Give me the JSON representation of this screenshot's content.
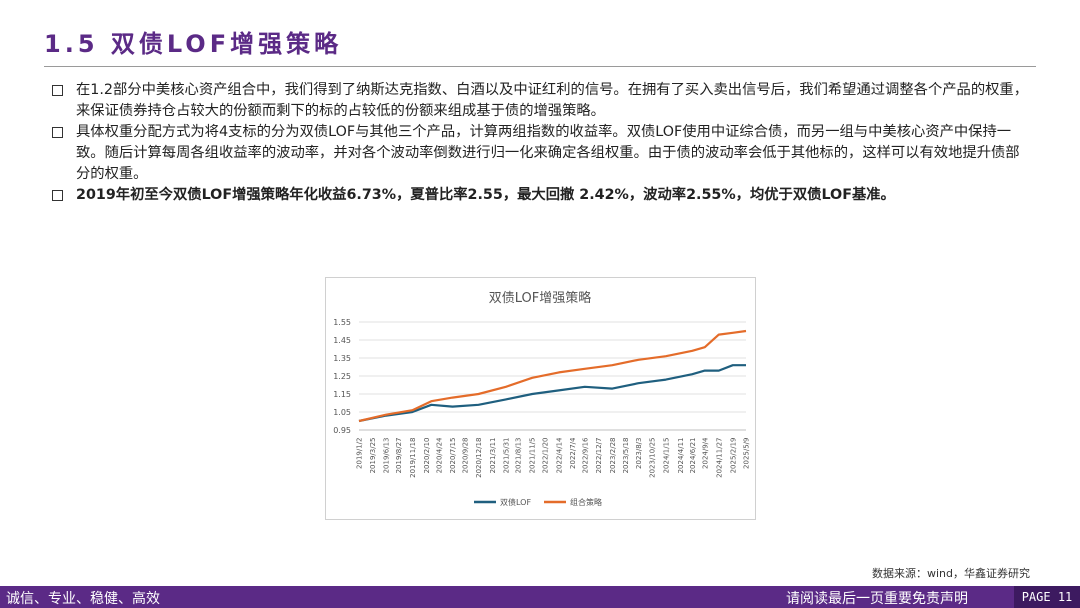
{
  "page": {
    "title": "1.5 双债LOF增强策略",
    "bullets": [
      {
        "text": "在1.2部分中美核心资产组合中，我们得到了纳斯达克指数、白酒以及中证红利的信号。在拥有了买入卖出信号后，我们希望通过调整各个产品的权重，来保证债券持仓占较大的份额而剩下的标的占较低的份额来组成基于债的增强策略。",
        "bold": false
      },
      {
        "text": "具体权重分配方式为将4支标的分为双债LOF与其他三个产品，计算两组指数的收益率。双债LOF使用中证综合债，而另一组与中美核心资产中保持一致。随后计算每周各组收益率的波动率，并对各个波动率倒数进行归一化来确定各组权重。由于债的波动率会低于其他标的，这样可以有效地提升债部分的权重。",
        "bold": false
      },
      {
        "text": "2019年初至今双债LOF增强策略年化收益6.73%，夏普比率2.55，最大回撤 2.42%，波动率2.55%，均优于双债LOF基准。",
        "bold": true
      }
    ],
    "source": "数据来源：wind，华鑫证券研究",
    "footer_slogan": "诚信、专业、稳健、高效",
    "footer_disclaimer": "请阅读最后一页重要免责声明",
    "page_label": "PAGE 11",
    "colors": {
      "brand": "#5b2a86",
      "footer_dark": "#3d1a60"
    }
  },
  "chart_data": {
    "type": "line",
    "title": "双债LOF增强策略",
    "ylim": [
      0.95,
      1.55
    ],
    "yticks": [
      "0.95",
      "1.05",
      "1.15",
      "1.25",
      "1.35",
      "1.45",
      "1.55"
    ],
    "grid": true,
    "legend_position": "bottom",
    "xtick_labels": [
      "2019/1/2",
      "2019/3/25",
      "2019/6/13",
      "2019/8/27",
      "2019/11/18",
      "2020/2/10",
      "2020/4/24",
      "2020/7/15",
      "2020/9/28",
      "2020/12/18",
      "2021/3/11",
      "2021/5/31",
      "2021/8/13",
      "2021/11/5",
      "2022/1/20",
      "2022/4/14",
      "2022/7/4",
      "2022/9/16",
      "2022/12/7",
      "2023/2/28",
      "2023/5/18",
      "2023/8/3",
      "2023/10/25",
      "2024/1/15",
      "2024/4/11",
      "2024/6/21",
      "2024/9/4",
      "2024/11/27",
      "2025/2/19",
      "2025/5/9"
    ],
    "x_dates": [
      "2019/1/2",
      "2019/6/13",
      "2019/11/18",
      "2020/3/10",
      "2020/7/15",
      "2020/12/18",
      "2021/5/31",
      "2021/11/5",
      "2022/4/14",
      "2022/9/16",
      "2023/2/28",
      "2023/8/3",
      "2024/1/15",
      "2024/6/21",
      "2024/9/4",
      "2024/11/27",
      "2025/2/19",
      "2025/5/9"
    ],
    "series": [
      {
        "name": "双债LOF",
        "color": "#1f5f7f",
        "values": [
          1.0,
          1.03,
          1.05,
          1.09,
          1.08,
          1.09,
          1.12,
          1.15,
          1.17,
          1.19,
          1.18,
          1.21,
          1.23,
          1.26,
          1.28,
          1.28,
          1.31,
          1.31
        ]
      },
      {
        "name": "组合策略",
        "color": "#e46c2a",
        "values": [
          1.0,
          1.035,
          1.06,
          1.11,
          1.13,
          1.15,
          1.19,
          1.24,
          1.27,
          1.29,
          1.31,
          1.34,
          1.36,
          1.39,
          1.41,
          1.48,
          1.49,
          1.5
        ]
      }
    ]
  }
}
